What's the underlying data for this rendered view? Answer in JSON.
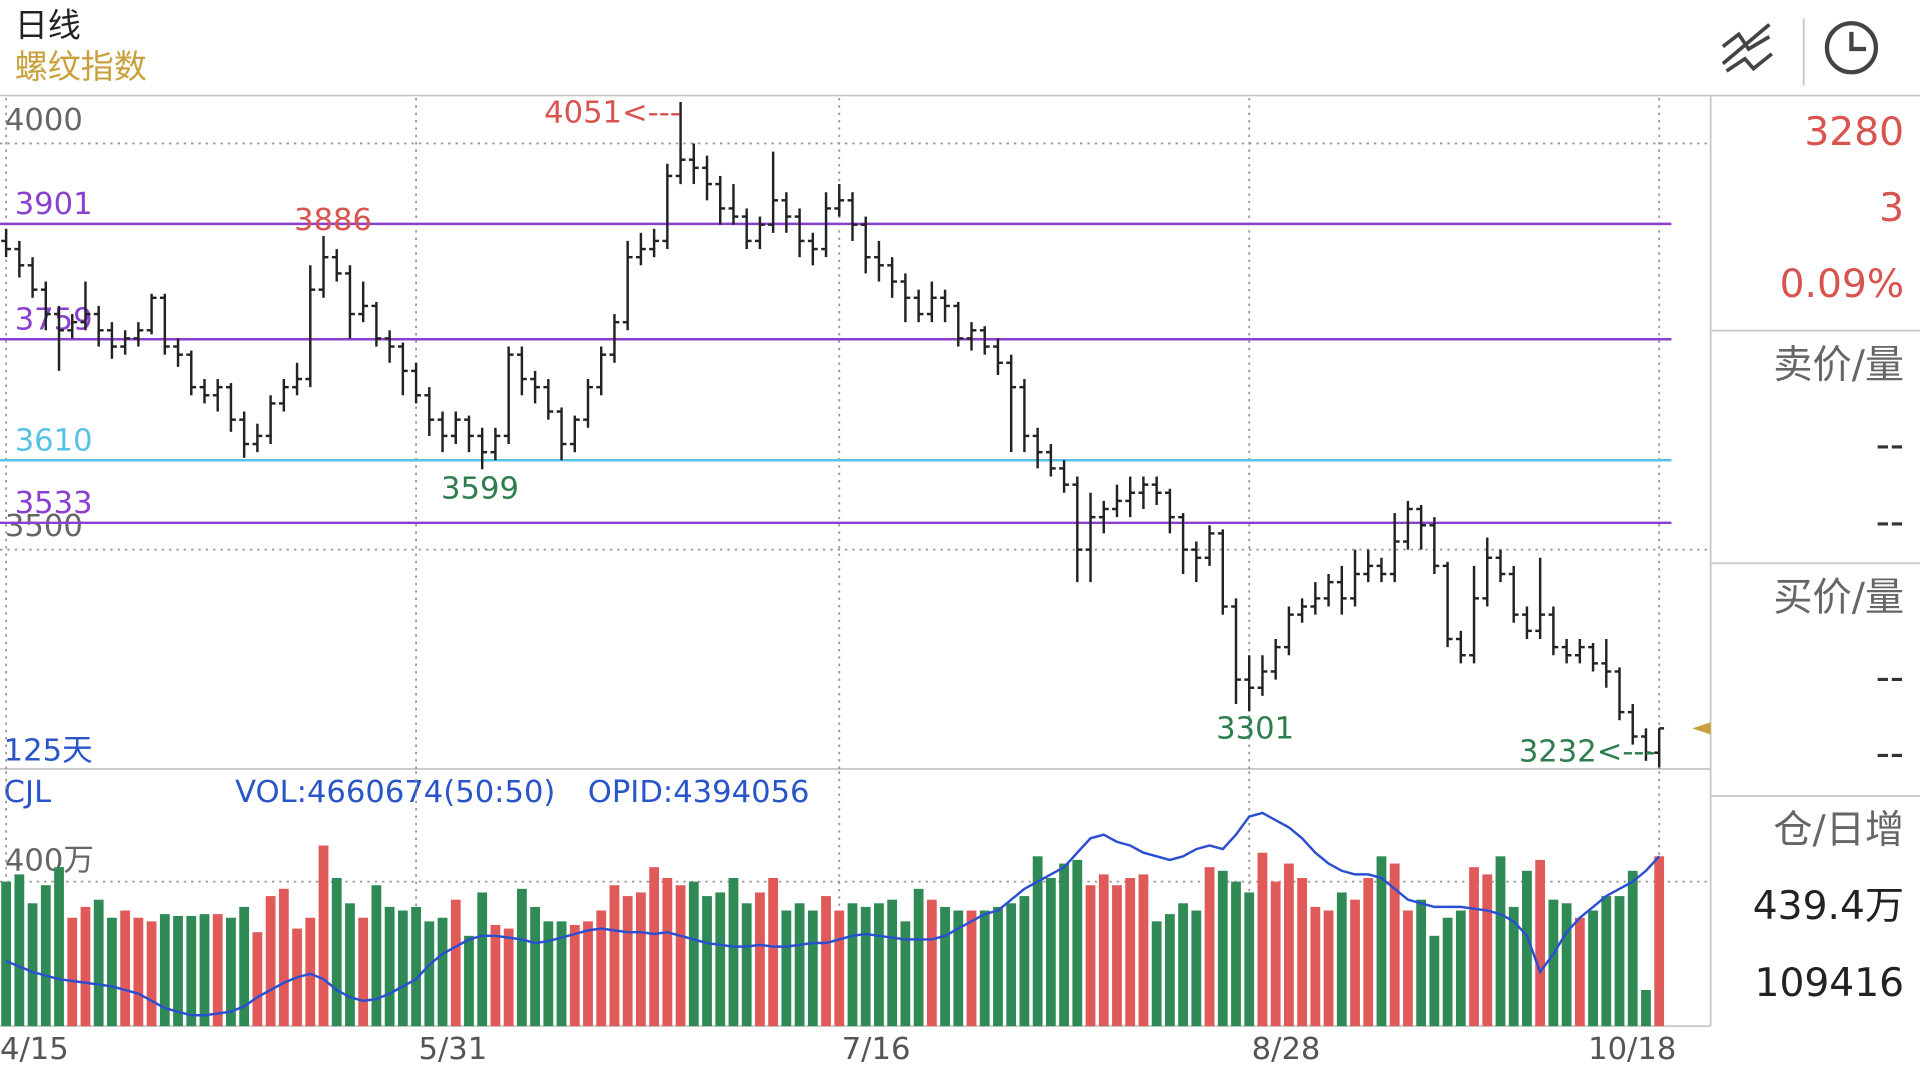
{
  "header": {
    "period": "日线",
    "title": "螺纹指数"
  },
  "quote": {
    "price": "3280",
    "change": "3",
    "change_pct": "0.09%",
    "ask_label": "卖价/量",
    "ask_price": "--",
    "ask_volume": "--",
    "bid_label": "买价/量",
    "bid_price": "--",
    "bid_volume": "--",
    "oi_label": "仓/日增",
    "open_interest": "439.4万",
    "oi_change": "109416"
  },
  "chart_data": {
    "type": "ohlc",
    "days_label": "125天",
    "up_color": "#e05a5a",
    "down_color": "#2f8a55",
    "bar_color": "#222222",
    "ylim": [
      3230,
      4056
    ],
    "yticks": [
      4000,
      3500
    ],
    "grid": true,
    "levels": [
      {
        "value": 3901,
        "color": "#8a3fd1"
      },
      {
        "value": 3759,
        "color": "#8a3fd1"
      },
      {
        "value": 3610,
        "color": "#56c3e6"
      },
      {
        "value": 3533,
        "color": "#8a3fd1"
      }
    ],
    "annotations": [
      {
        "text": "4051<---",
        "color": "#d9534f"
      },
      {
        "text": "3886",
        "color": "#d9534f"
      },
      {
        "text": "3599",
        "color": "#2e7d4f"
      },
      {
        "text": "3301",
        "color": "#2e7d4f"
      },
      {
        "text": "3232<---",
        "color": "#2e7d4f"
      }
    ],
    "categories": [
      "4/15",
      null,
      null,
      null,
      null,
      null,
      null,
      null,
      null,
      null,
      null,
      null,
      null,
      null,
      null,
      null,
      null,
      null,
      null,
      null,
      null,
      null,
      null,
      null,
      null,
      null,
      null,
      null,
      null,
      null,
      null,
      "5/31",
      null,
      null,
      null,
      null,
      null,
      null,
      null,
      null,
      null,
      null,
      null,
      null,
      null,
      null,
      null,
      null,
      null,
      null,
      null,
      null,
      null,
      null,
      null,
      null,
      null,
      null,
      null,
      null,
      null,
      null,
      null,
      "7/16",
      null,
      null,
      null,
      null,
      null,
      null,
      null,
      null,
      null,
      null,
      null,
      null,
      null,
      null,
      null,
      null,
      null,
      null,
      null,
      null,
      null,
      null,
      null,
      null,
      null,
      null,
      null,
      null,
      null,
      null,
      "8/28",
      null,
      null,
      null,
      null,
      null,
      null,
      null,
      null,
      null,
      null,
      null,
      null,
      null,
      null,
      null,
      null,
      null,
      null,
      null,
      null,
      null,
      null,
      null,
      null,
      null,
      null,
      null,
      null,
      null,
      null,
      "10/18"
    ],
    "ohlc": [
      [
        3880,
        3895,
        3860,
        3870
      ],
      [
        3870,
        3880,
        3835,
        3850
      ],
      [
        3850,
        3860,
        3810,
        3820
      ],
      [
        3820,
        3830,
        3770,
        3790
      ],
      [
        3790,
        3800,
        3720,
        3770
      ],
      [
        3770,
        3790,
        3760,
        3780
      ],
      [
        3780,
        3830,
        3770,
        3790
      ],
      [
        3790,
        3800,
        3750,
        3770
      ],
      [
        3770,
        3780,
        3735,
        3750
      ],
      [
        3750,
        3770,
        3740,
        3760
      ],
      [
        3760,
        3780,
        3750,
        3770
      ],
      [
        3770,
        3815,
        3765,
        3810
      ],
      [
        3810,
        3815,
        3740,
        3750
      ],
      [
        3750,
        3760,
        3725,
        3740
      ],
      [
        3740,
        3745,
        3690,
        3700
      ],
      [
        3700,
        3710,
        3680,
        3690
      ],
      [
        3690,
        3710,
        3670,
        3700
      ],
      [
        3700,
        3705,
        3645,
        3660
      ],
      [
        3660,
        3670,
        3613,
        3630
      ],
      [
        3630,
        3655,
        3620,
        3640
      ],
      [
        3640,
        3690,
        3630,
        3680
      ],
      [
        3680,
        3710,
        3670,
        3700
      ],
      [
        3700,
        3730,
        3690,
        3710
      ],
      [
        3710,
        3850,
        3700,
        3820
      ],
      [
        3820,
        3886,
        3810,
        3860
      ],
      [
        3860,
        3870,
        3830,
        3840
      ],
      [
        3840,
        3850,
        3760,
        3790
      ],
      [
        3790,
        3830,
        3780,
        3800
      ],
      [
        3800,
        3805,
        3750,
        3760
      ],
      [
        3760,
        3770,
        3730,
        3750
      ],
      [
        3750,
        3755,
        3690,
        3720
      ],
      [
        3720,
        3730,
        3680,
        3690
      ],
      [
        3690,
        3700,
        3640,
        3660
      ],
      [
        3660,
        3670,
        3620,
        3640
      ],
      [
        3640,
        3670,
        3630,
        3660
      ],
      [
        3660,
        3665,
        3620,
        3640
      ],
      [
        3640,
        3650,
        3599,
        3620
      ],
      [
        3620,
        3650,
        3610,
        3640
      ],
      [
        3640,
        3750,
        3630,
        3740
      ],
      [
        3740,
        3750,
        3690,
        3710
      ],
      [
        3710,
        3720,
        3680,
        3700
      ],
      [
        3700,
        3710,
        3660,
        3670
      ],
      [
        3670,
        3675,
        3610,
        3630
      ],
      [
        3630,
        3665,
        3620,
        3660
      ],
      [
        3660,
        3710,
        3650,
        3700
      ],
      [
        3700,
        3750,
        3690,
        3740
      ],
      [
        3740,
        3790,
        3730,
        3780
      ],
      [
        3780,
        3880,
        3770,
        3860
      ],
      [
        3860,
        3890,
        3850,
        3870
      ],
      [
        3870,
        3895,
        3860,
        3880
      ],
      [
        3880,
        3975,
        3870,
        3960
      ],
      [
        3960,
        4051,
        3950,
        3980
      ],
      [
        3980,
        4000,
        3950,
        3970
      ],
      [
        3970,
        3985,
        3930,
        3950
      ],
      [
        3950,
        3960,
        3900,
        3920
      ],
      [
        3920,
        3950,
        3900,
        3910
      ],
      [
        3910,
        3920,
        3870,
        3880
      ],
      [
        3880,
        3910,
        3870,
        3900
      ],
      [
        3900,
        3990,
        3890,
        3930
      ],
      [
        3930,
        3940,
        3890,
        3910
      ],
      [
        3910,
        3920,
        3860,
        3880
      ],
      [
        3880,
        3890,
        3850,
        3870
      ],
      [
        3870,
        3940,
        3860,
        3920
      ],
      [
        3920,
        3950,
        3910,
        3930
      ],
      [
        3930,
        3940,
        3880,
        3900
      ],
      [
        3900,
        3910,
        3840,
        3860
      ],
      [
        3860,
        3880,
        3830,
        3850
      ],
      [
        3850,
        3860,
        3810,
        3830
      ],
      [
        3830,
        3840,
        3780,
        3810
      ],
      [
        3810,
        3820,
        3780,
        3790
      ],
      [
        3790,
        3830,
        3780,
        3810
      ],
      [
        3810,
        3820,
        3780,
        3800
      ],
      [
        3800,
        3805,
        3750,
        3760
      ],
      [
        3760,
        3780,
        3745,
        3770
      ],
      [
        3770,
        3775,
        3740,
        3750
      ],
      [
        3750,
        3760,
        3715,
        3730
      ],
      [
        3730,
        3740,
        3620,
        3700
      ],
      [
        3700,
        3710,
        3620,
        3640
      ],
      [
        3640,
        3650,
        3600,
        3620
      ],
      [
        3620,
        3630,
        3590,
        3600
      ],
      [
        3600,
        3610,
        3570,
        3580
      ],
      [
        3580,
        3590,
        3460,
        3500
      ],
      [
        3500,
        3570,
        3460,
        3540
      ],
      [
        3540,
        3560,
        3520,
        3550
      ],
      [
        3550,
        3580,
        3540,
        3560
      ],
      [
        3560,
        3590,
        3540,
        3570
      ],
      [
        3570,
        3590,
        3550,
        3580
      ],
      [
        3580,
        3590,
        3555,
        3570
      ],
      [
        3570,
        3575,
        3520,
        3540
      ],
      [
        3540,
        3545,
        3470,
        3500
      ],
      [
        3500,
        3510,
        3460,
        3490
      ],
      [
        3490,
        3530,
        3480,
        3520
      ],
      [
        3520,
        3525,
        3420,
        3430
      ],
      [
        3430,
        3440,
        3310,
        3340
      ],
      [
        3340,
        3370,
        3301,
        3330
      ],
      [
        3330,
        3370,
        3320,
        3350
      ],
      [
        3350,
        3390,
        3340,
        3380
      ],
      [
        3380,
        3430,
        3370,
        3420
      ],
      [
        3420,
        3440,
        3410,
        3430
      ],
      [
        3430,
        3460,
        3420,
        3440
      ],
      [
        3440,
        3470,
        3430,
        3460
      ],
      [
        3460,
        3480,
        3420,
        3440
      ],
      [
        3440,
        3500,
        3430,
        3470
      ],
      [
        3470,
        3500,
        3460,
        3480
      ],
      [
        3480,
        3490,
        3460,
        3470
      ],
      [
        3470,
        3545,
        3460,
        3510
      ],
      [
        3510,
        3560,
        3500,
        3550
      ],
      [
        3550,
        3555,
        3500,
        3530
      ],
      [
        3530,
        3540,
        3470,
        3480
      ],
      [
        3480,
        3485,
        3380,
        3390
      ],
      [
        3390,
        3400,
        3360,
        3370
      ],
      [
        3370,
        3480,
        3360,
        3440
      ],
      [
        3440,
        3515,
        3430,
        3490
      ],
      [
        3490,
        3500,
        3460,
        3470
      ],
      [
        3470,
        3480,
        3410,
        3420
      ],
      [
        3420,
        3430,
        3390,
        3400
      ],
      [
        3400,
        3490,
        3390,
        3420
      ],
      [
        3420,
        3430,
        3370,
        3380
      ],
      [
        3380,
        3390,
        3360,
        3370
      ],
      [
        3370,
        3390,
        3360,
        3380
      ],
      [
        3380,
        3385,
        3350,
        3360
      ],
      [
        3360,
        3390,
        3330,
        3350
      ],
      [
        3350,
        3355,
        3290,
        3300
      ],
      [
        3300,
        3310,
        3260,
        3270
      ],
      [
        3270,
        3280,
        3240,
        3250
      ],
      [
        3250,
        3280,
        3232,
        3280
      ]
    ],
    "volume": {
      "type": "bar",
      "name": "CJL",
      "vol_label": "VOL:4660674(50:50)",
      "opid_label": "OPID:4394056",
      "ylim": [
        0,
        705
      ],
      "yticks": [
        {
          "value": 400,
          "label": "400万"
        }
      ],
      "values": [
        400,
        420,
        340,
        390,
        440,
        300,
        330,
        350,
        300,
        320,
        300,
        290,
        310,
        305,
        305,
        310,
        310,
        300,
        330,
        260,
        360,
        380,
        270,
        300,
        500,
        410,
        340,
        300,
        390,
        330,
        320,
        330,
        290,
        300,
        350,
        250,
        370,
        280,
        270,
        380,
        330,
        290,
        290,
        280,
        290,
        320,
        390,
        360,
        370,
        440,
        410,
        390,
        400,
        360,
        370,
        410,
        340,
        370,
        410,
        320,
        340,
        320,
        360,
        320,
        340,
        330,
        340,
        350,
        290,
        380,
        350,
        330,
        320,
        320,
        320,
        330,
        340,
        360,
        470,
        410,
        450,
        460,
        390,
        420,
        390,
        410,
        420,
        290,
        310,
        340,
        320,
        440,
        430,
        400,
        370,
        480,
        400,
        450,
        410,
        330,
        320,
        370,
        350,
        410,
        470,
        450,
        320,
        350,
        250,
        300,
        320,
        440,
        420,
        470,
        330,
        430,
        460,
        350,
        340,
        300,
        320,
        360,
        360,
        430,
        100,
        470
      ],
      "line": {
        "color": "#2a4fd0",
        "values": [
          180,
          165,
          150,
          140,
          130,
          125,
          120,
          115,
          110,
          100,
          90,
          70,
          50,
          40,
          30,
          30,
          35,
          40,
          55,
          80,
          100,
          120,
          135,
          145,
          130,
          100,
          80,
          70,
          75,
          90,
          110,
          130,
          170,
          200,
          220,
          240,
          250,
          250,
          245,
          240,
          230,
          235,
          245,
          255,
          265,
          270,
          265,
          260,
          260,
          255,
          260,
          250,
          240,
          230,
          225,
          220,
          220,
          225,
          220,
          220,
          225,
          230,
          230,
          240,
          250,
          255,
          250,
          245,
          240,
          240,
          240,
          250,
          270,
          290,
          310,
          320,
          350,
          380,
          400,
          420,
          440,
          480,
          520,
          530,
          510,
          500,
          480,
          470,
          460,
          470,
          490,
          500,
          490,
          530,
          580,
          590,
          570,
          550,
          520,
          480,
          450,
          430,
          420,
          420,
          410,
          380,
          350,
          340,
          330,
          330,
          330,
          325,
          320,
          310,
          290,
          250,
          150,
          200,
          260,
          300,
          330,
          360,
          380,
          400,
          430,
          470
        ]
      }
    }
  }
}
